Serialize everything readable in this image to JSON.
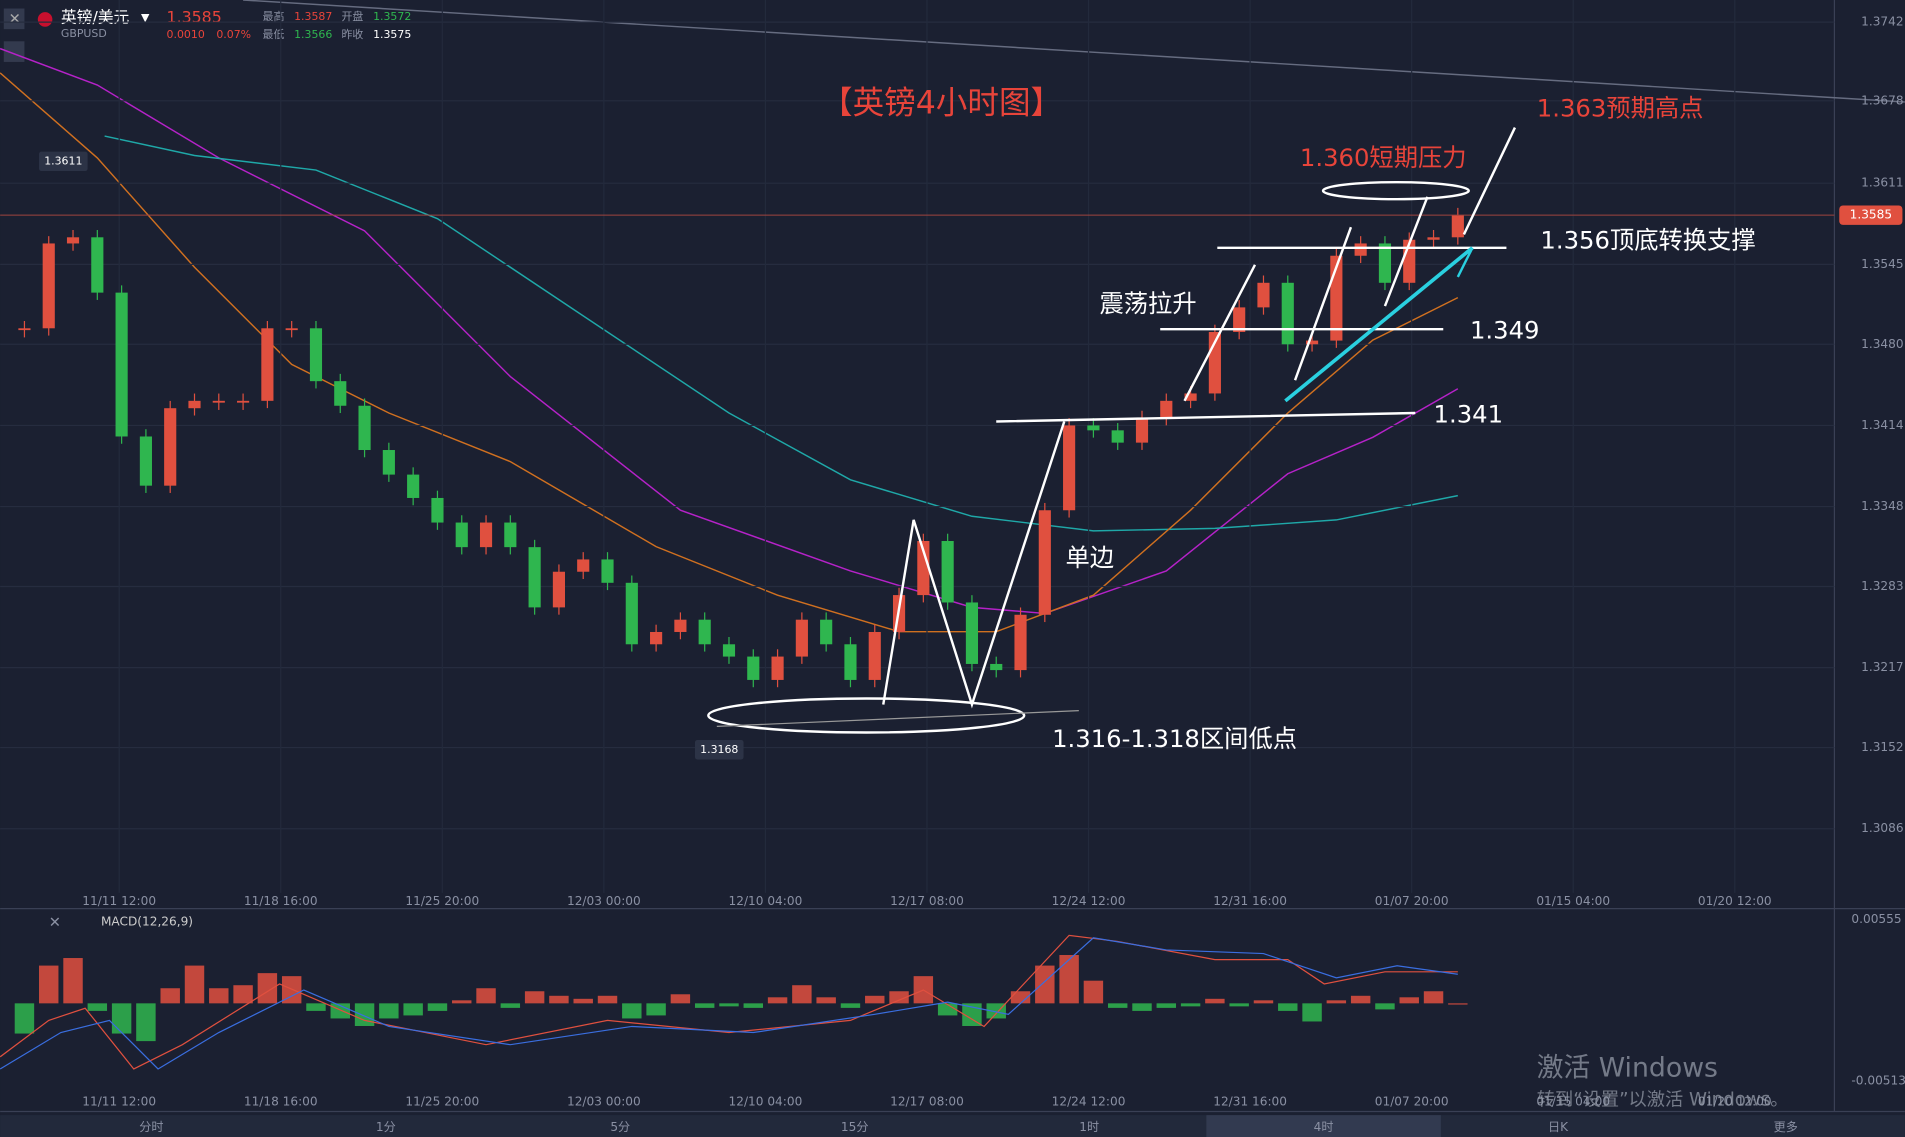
{
  "header": {
    "symbol": "英镑/美元",
    "code": "GBPUSD",
    "price": "1.3585",
    "change": "0.0010",
    "change_pct": "0.07%",
    "high_label": "最高",
    "high": "1.3587",
    "open_label": "开盘",
    "open": "1.3572",
    "low_label": "最低",
    "low": "1.3566",
    "prev_label": "昨收",
    "prev": "1.3575"
  },
  "chart_data": {
    "type": "candlestick",
    "title": "【英镑4小时图】",
    "closes": [
      1.3493,
      1.3562,
      1.3567,
      1.3522,
      1.3405,
      1.3365,
      1.3428,
      1.3434,
      1.3434,
      1.3434,
      1.3493,
      1.3493,
      1.345,
      1.343,
      1.3394,
      1.3374,
      1.3355,
      1.3335,
      1.3315,
      1.3335,
      1.3315,
      1.3266,
      1.3295,
      1.3305,
      1.3286,
      1.3236,
      1.3246,
      1.3256,
      1.3236,
      1.3226,
      1.3207,
      1.3226,
      1.3256,
      1.3236,
      1.3207,
      1.3246,
      1.3276,
      1.332,
      1.327,
      1.322,
      1.3215,
      1.326,
      1.3345,
      1.3414,
      1.341,
      1.34,
      1.342,
      1.3434,
      1.344,
      1.349,
      1.351,
      1.353,
      1.348,
      1.3483,
      1.3552,
      1.3562,
      1.353,
      1.3565,
      1.3567,
      1.3585
    ],
    "up_color": "#e0503f",
    "down_color": "#2fb64f",
    "ylim": [
      1.3021,
      1.376
    ],
    "yticks": [
      1.3742,
      1.3678,
      1.3611,
      1.3545,
      {
        "value": 1.348,
        "label": "1.3480"
      },
      1.3414,
      1.3348,
      1.3283,
      1.3217,
      1.3152,
      1.3086
    ],
    "x_labels": [
      "11/11 12:00",
      "11/18 16:00",
      "11/25 20:00",
      "12/03 00:00",
      "12/10 04:00",
      "12/17 08:00",
      "12/24 12:00",
      "12/31 16:00",
      "01/07 20:00",
      "01/15 04:00",
      "01/20 12:00"
    ],
    "high_marker": 1.3611,
    "low_marker": 1.3168,
    "last_price": 1.3585,
    "annotations": {
      "target": "1.363预期高点",
      "pressure": "1.360短期压力",
      "support": "1.356顶底转换支撑",
      "rally": "震荡拉升",
      "level1": "1.349",
      "level2": "1.341",
      "trend": "单边",
      "lows": "1.316-1.318区间低点"
    }
  },
  "macd": {
    "type": "bar",
    "label": "MACD(12,26,9)",
    "values": [
      -0.002,
      0.0025,
      0.003,
      -0.0005,
      -0.002,
      -0.0025,
      0.001,
      0.0025,
      0.001,
      0.0012,
      0.002,
      0.0018,
      -0.0005,
      -0.001,
      -0.0015,
      -0.001,
      -0.0008,
      -0.0005,
      0.0002,
      0.001,
      -0.0003,
      0.0008,
      0.0005,
      0.0003,
      0.0005,
      -0.001,
      -0.0008,
      0.0006,
      -0.0003,
      -0.0002,
      -0.0003,
      0.0004,
      0.0012,
      0.0004,
      -0.0003,
      0.0005,
      0.0008,
      0.0018,
      -0.0008,
      -0.0015,
      -0.001,
      0.0008,
      0.0025,
      0.0032,
      0.0015,
      -0.0003,
      -0.0005,
      -0.0003,
      -0.0002,
      0.0003,
      -0.0002,
      0.0002,
      -0.0005,
      -0.0012,
      0.0002,
      0.0005,
      -0.0004,
      0.0004,
      0.0008,
      0
    ],
    "ylim": [
      -0.00716,
      0.00611
    ],
    "yticks": [
      0.00555,
      -0.00513
    ]
  },
  "tabs": [
    "分时",
    "1分",
    "5分",
    "15分",
    "1时",
    "4时",
    "日K",
    "更多"
  ],
  "watermark": {
    "title": "激活 Windows",
    "subtitle": "转到“设置”以激活 Windows。"
  }
}
